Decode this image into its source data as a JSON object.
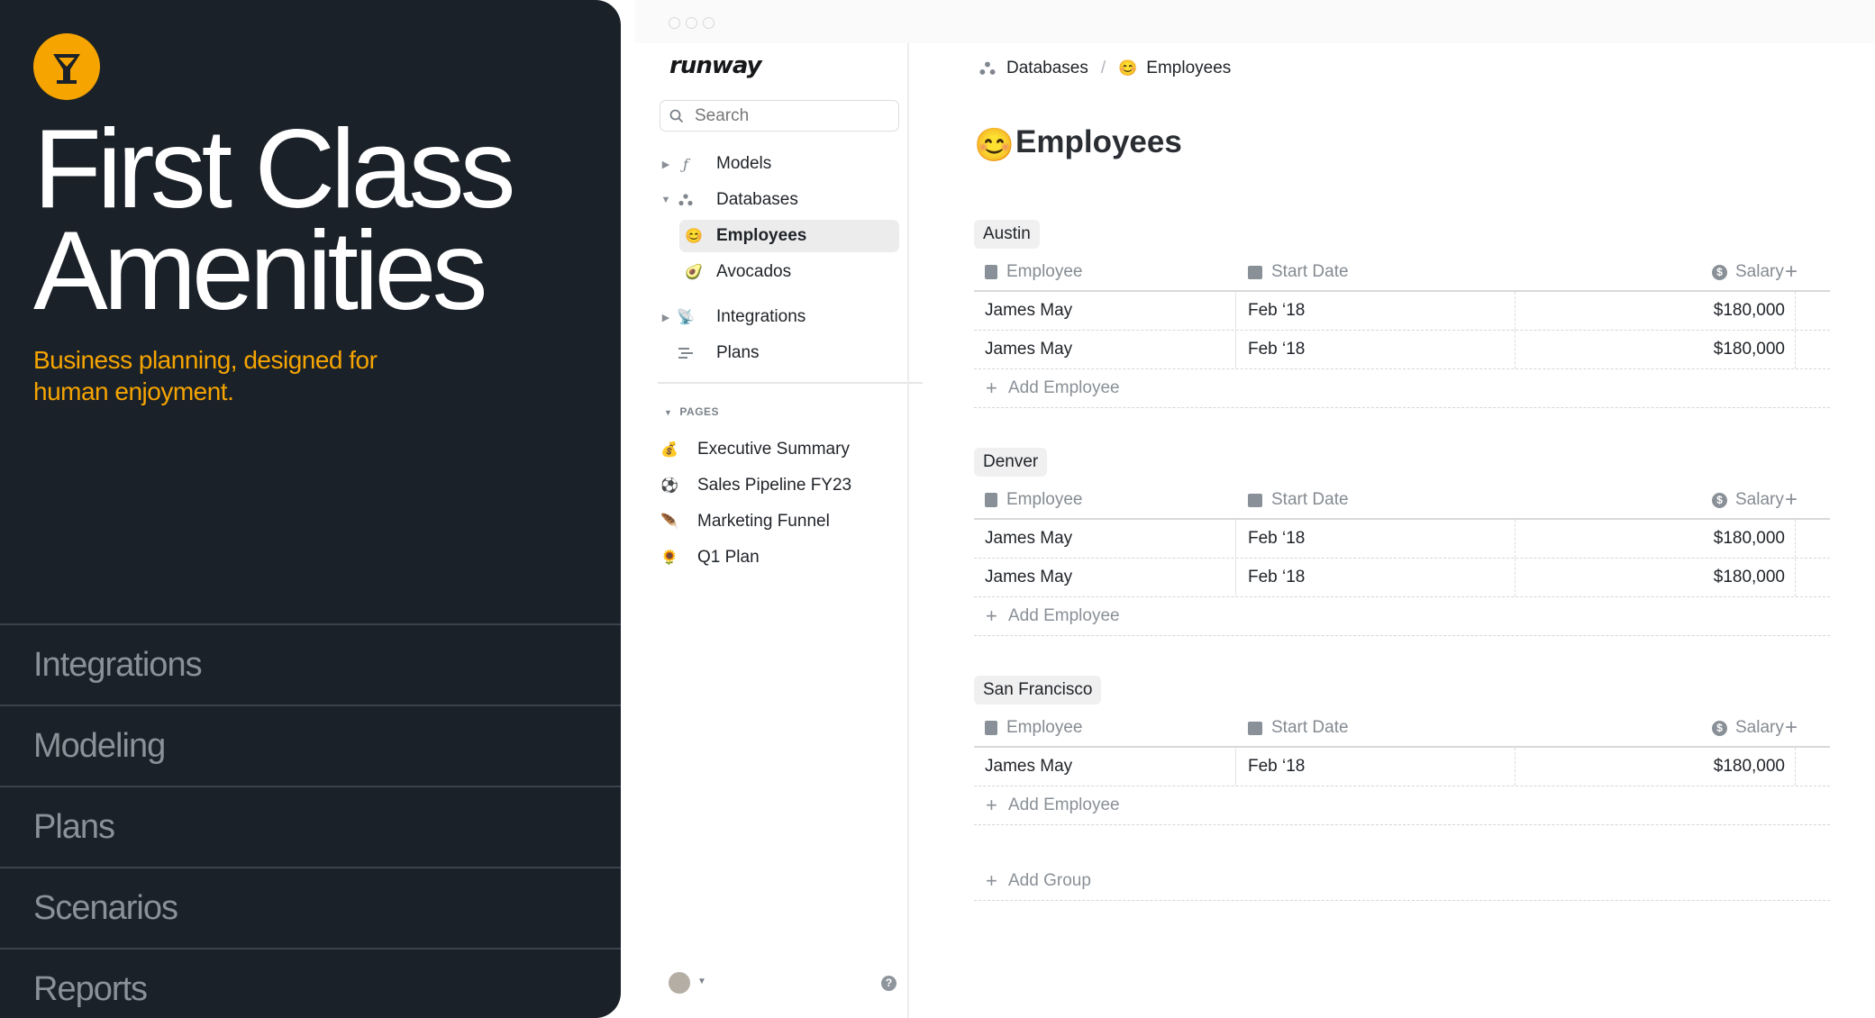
{
  "promo": {
    "headline_line1": "First Class",
    "headline_line2": "Amenities",
    "tagline": "Business planning, designed for human enjoyment.",
    "features": [
      "Integrations",
      "Modeling",
      "Plans",
      "Scenarios",
      "Reports"
    ],
    "accent_color": "#f5a400",
    "logo_icon": "cocktail-glass-icon"
  },
  "app": {
    "brand": "runway",
    "search": {
      "placeholder": "Search"
    },
    "nav": {
      "models": "Models",
      "databases": "Databases",
      "employees": "Employees",
      "avocados": "Avocados",
      "integrations": "Integrations",
      "plans": "Plans"
    },
    "pages_section": {
      "heading": "PAGES",
      "items": [
        "Executive Summary",
        "Sales Pipeline FY23",
        "Marketing Funnel",
        "Q1 Plan"
      ]
    },
    "breadcrumb": {
      "parent": "Databases",
      "separator": "/",
      "current": "Employees"
    },
    "title": "Employees",
    "columns": {
      "employee": "Employee",
      "start_date": "Start Date",
      "salary": "Salary"
    },
    "groups": [
      {
        "name": "Austin",
        "rows": [
          {
            "employee": "James May",
            "start_date": "Feb ‘18",
            "salary": "$180,000"
          },
          {
            "employee": "James May",
            "start_date": "Feb ‘18",
            "salary": "$180,000"
          }
        ],
        "add_label": "Add Employee"
      },
      {
        "name": "Denver",
        "rows": [
          {
            "employee": "James May",
            "start_date": "Feb ‘18",
            "salary": "$180,000"
          },
          {
            "employee": "James May",
            "start_date": "Feb ‘18",
            "salary": "$180,000"
          }
        ],
        "add_label": "Add Employee"
      },
      {
        "name": "San Francisco",
        "rows": [
          {
            "employee": "James May",
            "start_date": "Feb ‘18",
            "salary": "$180,000"
          }
        ],
        "add_label": "Add Employee"
      }
    ],
    "add_group": "Add Group",
    "help": "?"
  }
}
